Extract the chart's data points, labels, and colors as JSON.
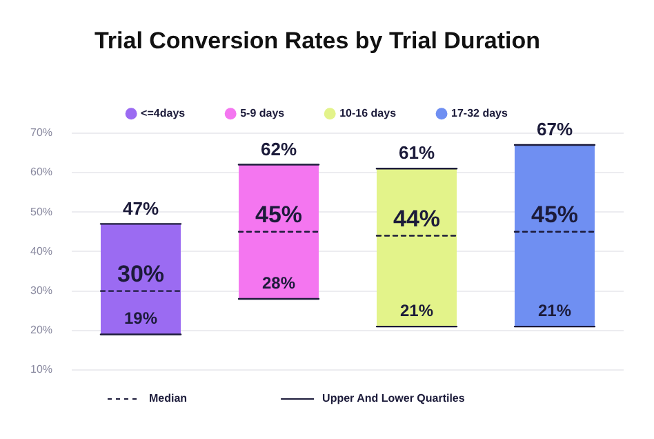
{
  "chart_data": {
    "type": "box",
    "title": "Trial Conversion Rates by Trial Duration",
    "categories": [
      null,
      null,
      null,
      null
    ],
    "series": [
      {
        "name": "<=4days",
        "color": "#9b6bf2",
        "boxes": [
          {
            "low": 19,
            "q1": 19,
            "median": 30,
            "q3": 47,
            "high": 47
          },
          null,
          null,
          null
        ],
        "value_labels": [
          [
            "47%",
            "30%",
            "19%"
          ],
          null,
          null,
          null
        ]
      },
      {
        "name": "5-9 days",
        "color": "#f476f0",
        "boxes": [
          null,
          {
            "low": 28,
            "q1": 28,
            "median": 45,
            "q3": 62,
            "high": 62
          },
          null,
          null
        ],
        "value_labels": [
          null,
          [
            "62%",
            "45%",
            "28%"
          ],
          null,
          null
        ]
      },
      {
        "name": "10-16 days",
        "color": "#e3f38a",
        "boxes": [
          null,
          null,
          {
            "low": 21,
            "q1": 21,
            "median": 44,
            "q3": 61,
            "high": 61
          },
          null
        ],
        "value_labels": [
          null,
          null,
          [
            "61%",
            "44%",
            "21%"
          ],
          null
        ]
      },
      {
        "name": "17-32 days",
        "color": "#6f8ff2",
        "boxes": [
          null,
          null,
          null,
          {
            "low": 21,
            "q1": 21,
            "median": 45,
            "q3": 67,
            "high": 67
          }
        ],
        "value_labels": [
          null,
          null,
          null,
          [
            "67%",
            "45%",
            "21%"
          ]
        ]
      }
    ],
    "ylim": [
      10,
      70
    ],
    "yticks": [
      {
        "value": 10,
        "label": "10%"
      },
      {
        "value": 20,
        "label": "20%"
      },
      {
        "value": 30,
        "label": "30%"
      },
      {
        "value": 40,
        "label": "40%"
      },
      {
        "value": 50,
        "label": "50%"
      },
      {
        "value": 60,
        "label": "60%"
      },
      {
        "value": 70,
        "label": "70%"
      }
    ],
    "grid": "y",
    "legend": "top",
    "annotations": [
      "Median",
      "Upper And Lower Quartiles"
    ]
  }
}
